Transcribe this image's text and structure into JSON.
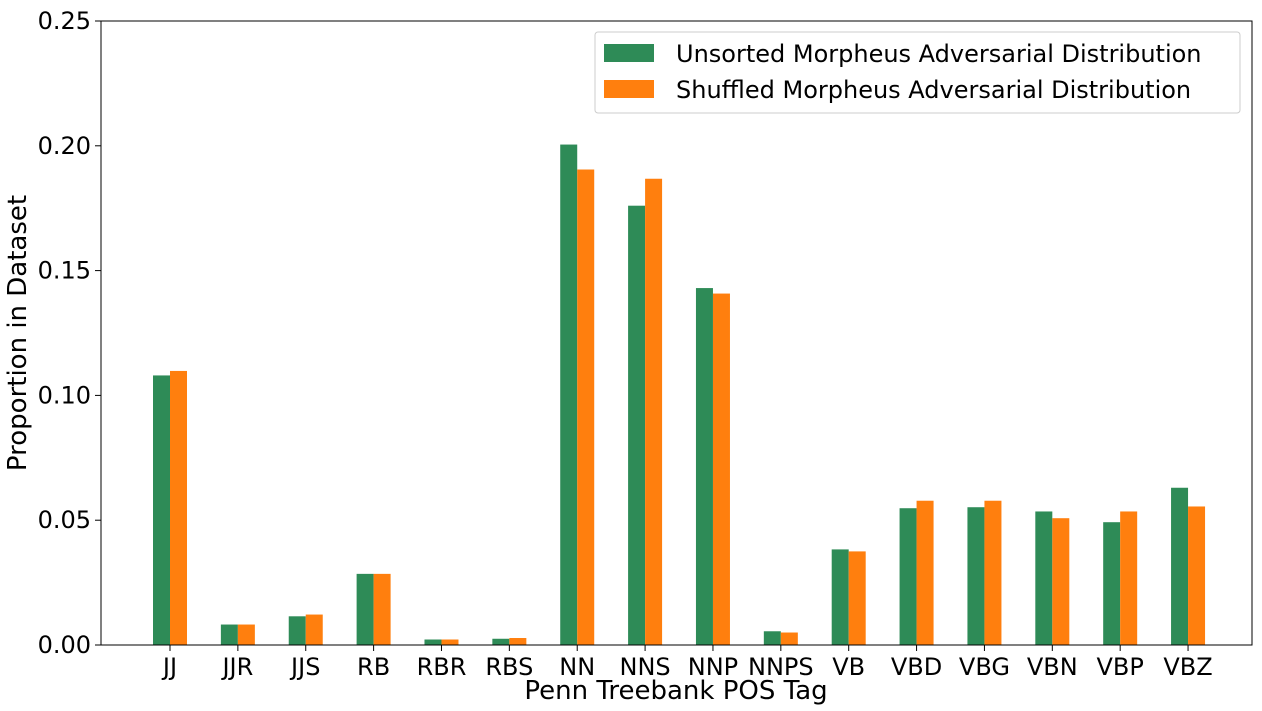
{
  "chart_data": {
    "type": "bar",
    "title": "",
    "xlabel": "Penn Treebank POS Tag",
    "ylabel": "Proportion in Dataset",
    "ylim": [
      0,
      0.25
    ],
    "yticks": [
      "0.00",
      "0.05",
      "0.10",
      "0.15",
      "0.20",
      "0.25"
    ],
    "grid": false,
    "legend_position": "top-right",
    "categories": [
      "JJ",
      "JJR",
      "JJS",
      "RB",
      "RBR",
      "RBS",
      "NN",
      "NNS",
      "NNP",
      "NNPS",
      "VB",
      "VBD",
      "VBG",
      "VBN",
      "VBP",
      "VBZ"
    ],
    "series": [
      {
        "name": "Unsorted Morpheus Adversarial Distribution",
        "color": "#2e8b57",
        "values": [
          0.108,
          0.0082,
          0.0115,
          0.0285,
          0.0022,
          0.0025,
          0.2005,
          0.176,
          0.143,
          0.0055,
          0.0383,
          0.0548,
          0.0552,
          0.0535,
          0.0492,
          0.063
        ]
      },
      {
        "name": "Shuffled Morpheus Adversarial Distribution",
        "color": "#ff7f0e",
        "values": [
          0.1098,
          0.0082,
          0.0122,
          0.0285,
          0.0022,
          0.0028,
          0.1905,
          0.1868,
          0.1408,
          0.005,
          0.0375,
          0.0578,
          0.0578,
          0.0508,
          0.0535,
          0.0555
        ]
      }
    ]
  }
}
